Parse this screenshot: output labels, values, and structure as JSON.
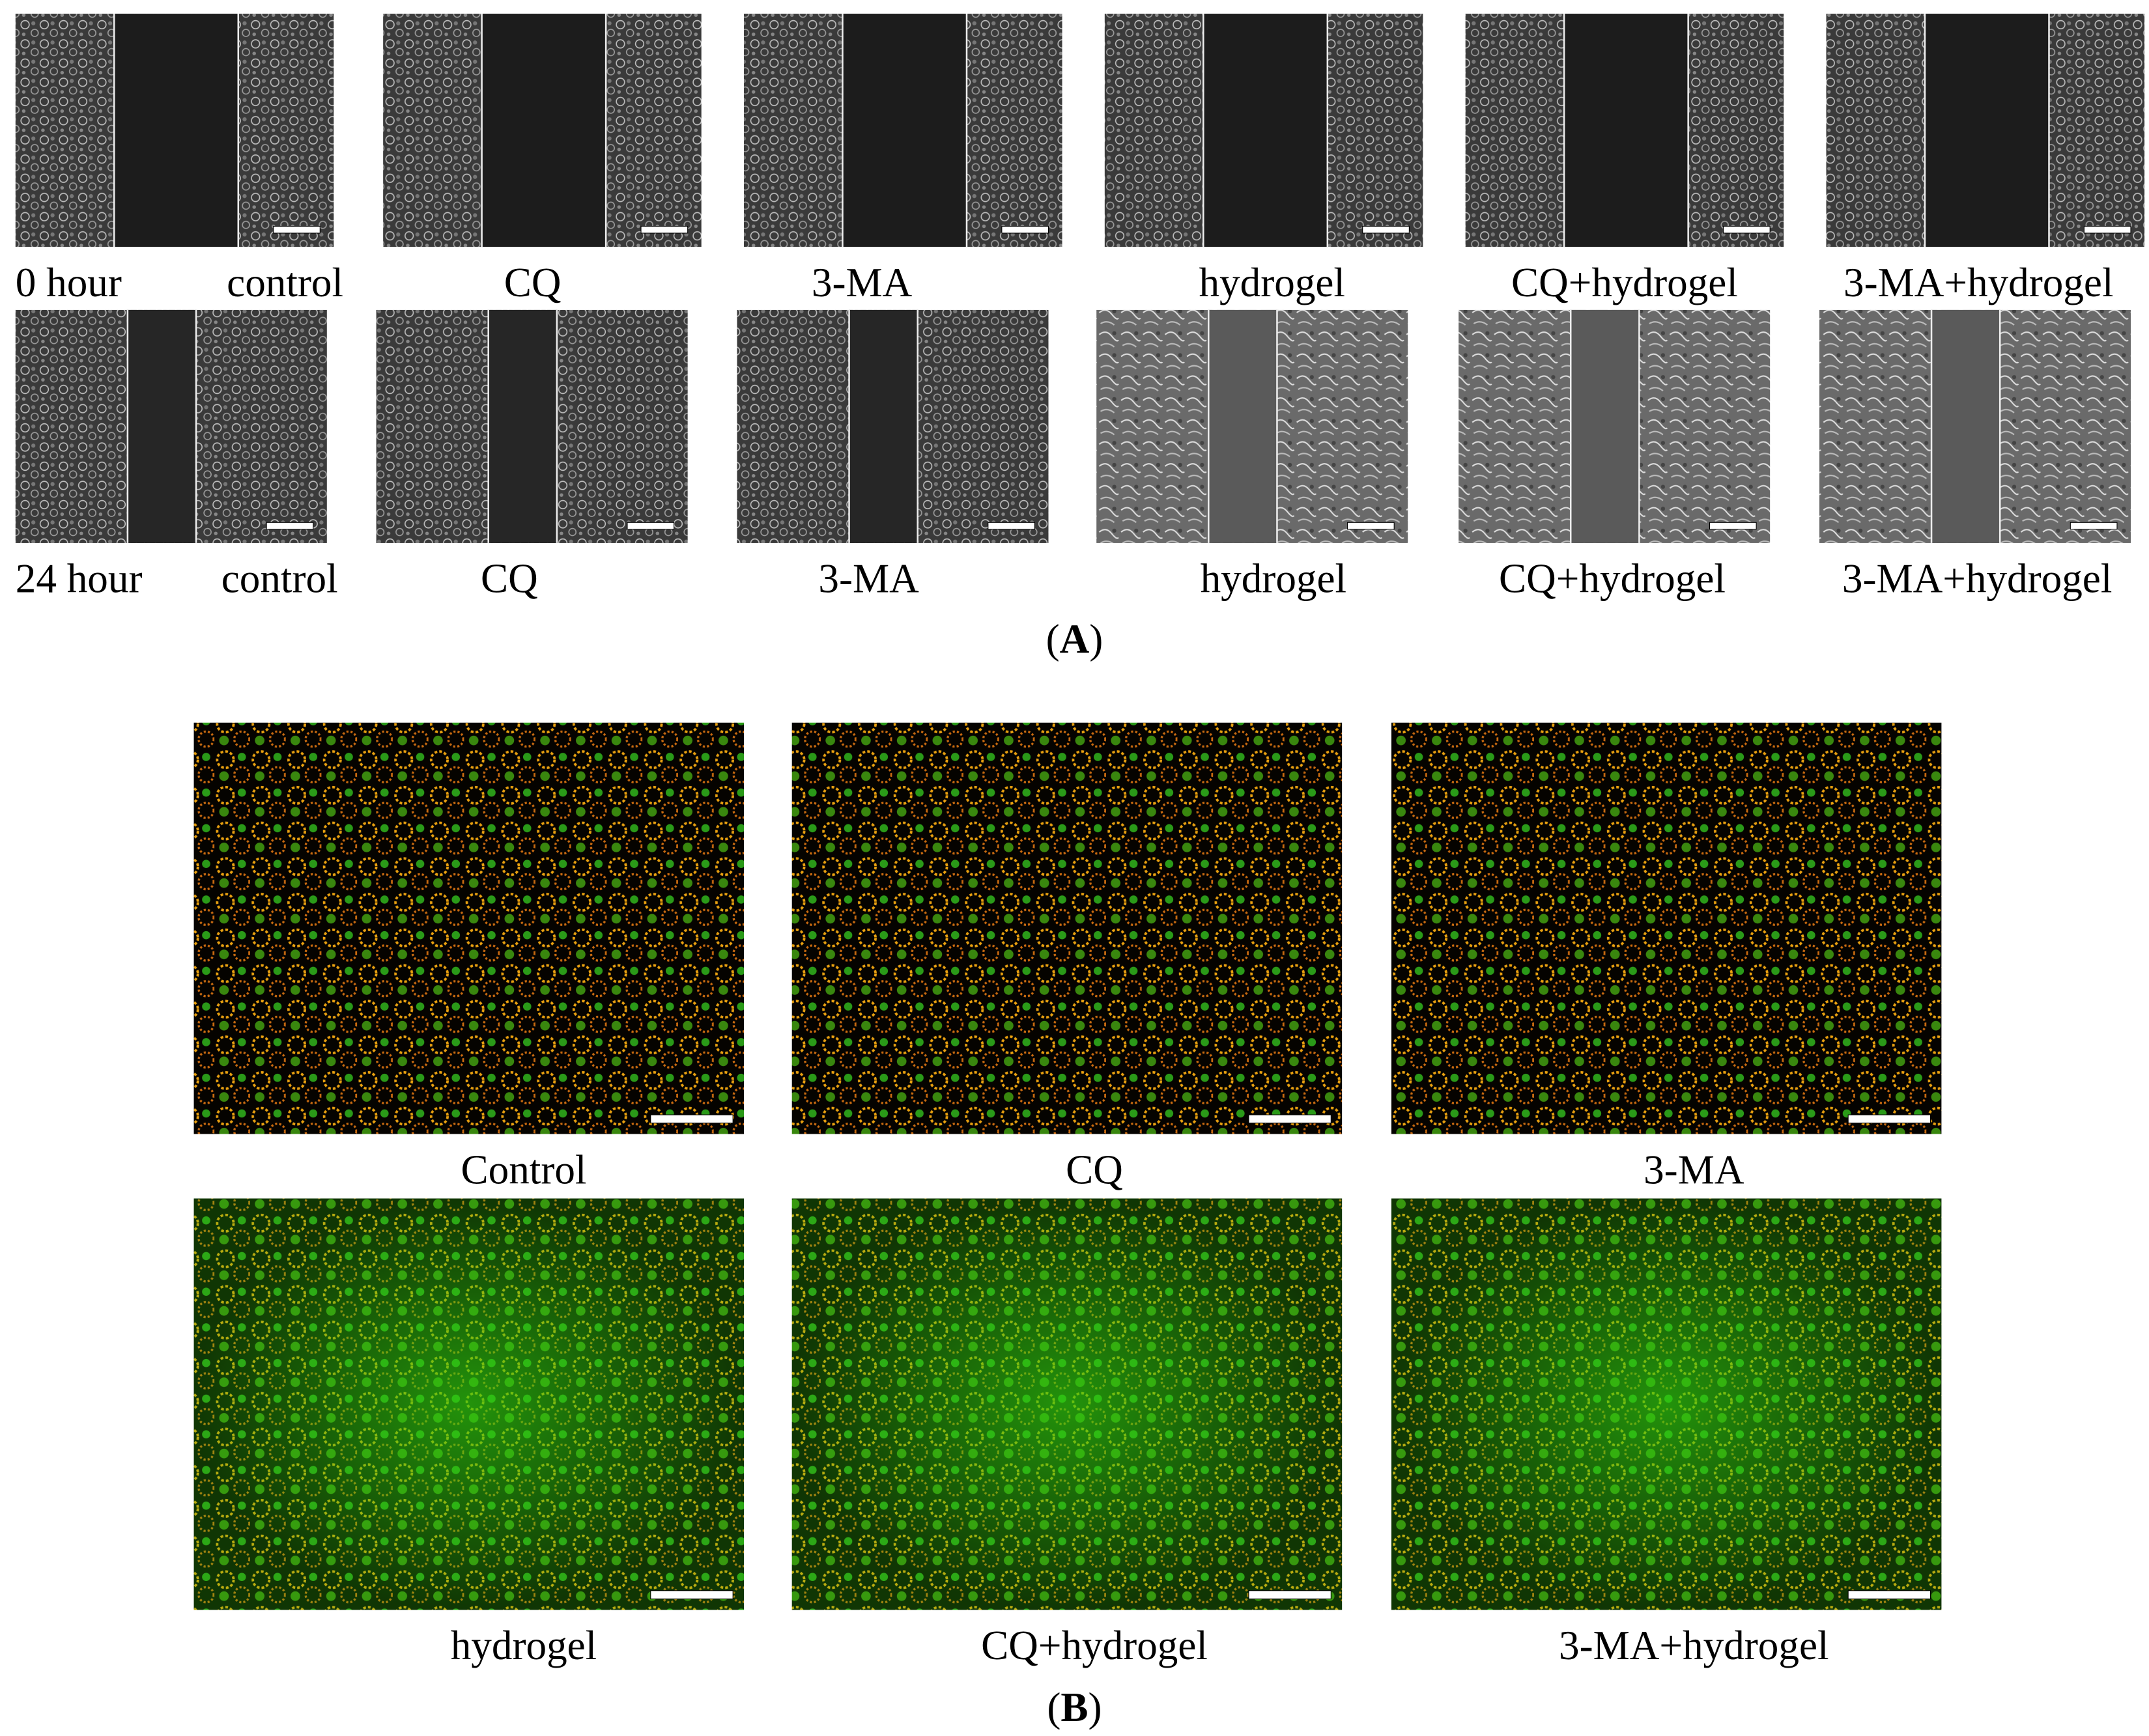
{
  "panel_a": {
    "rows": [
      {
        "time": "0 hour",
        "labels": [
          "control",
          "CQ",
          "3-MA",
          "hydrogel",
          "CQ+hydrogel",
          "3-MA+hydrogel"
        ]
      },
      {
        "time": "24 hour",
        "labels": [
          "control",
          "CQ",
          "3-MA",
          "hydrogel",
          "CQ+hydrogel",
          "3-MA+hydrogel"
        ]
      }
    ],
    "caption": [
      "(",
      "A",
      ")"
    ]
  },
  "panel_b": {
    "labels": [
      "Control",
      "CQ",
      "3-MA",
      "hydrogel",
      "CQ+hydrogel",
      "3-MA+hydrogel"
    ],
    "caption": [
      "(",
      "B",
      ")"
    ]
  }
}
